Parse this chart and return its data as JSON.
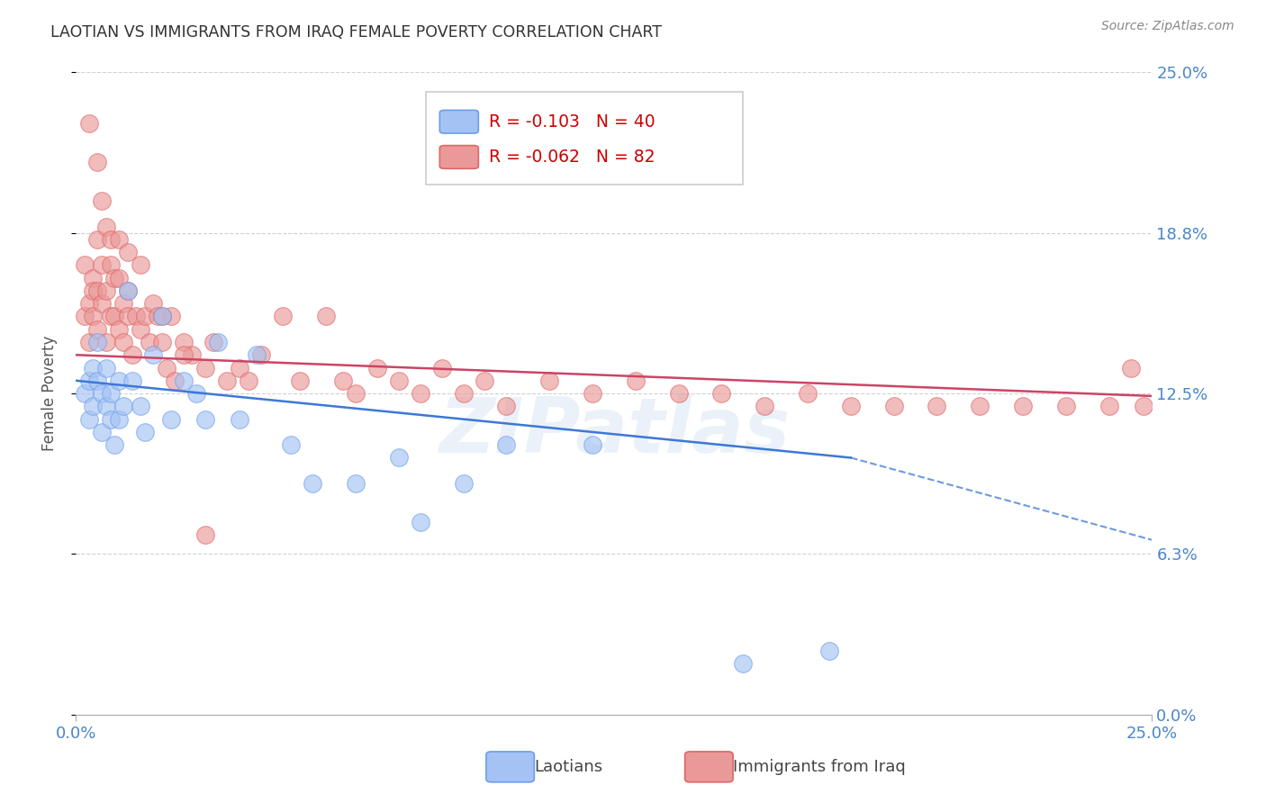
{
  "title": "LAOTIAN VS IMMIGRANTS FROM IRAQ FEMALE POVERTY CORRELATION CHART",
  "source": "Source: ZipAtlas.com",
  "ylabel": "Female Poverty",
  "xmin": 0.0,
  "xmax": 0.25,
  "ymin": 0.0,
  "ymax": 0.25,
  "ytick_values": [
    0.0,
    0.0625,
    0.125,
    0.1875,
    0.25
  ],
  "ytick_labels": [
    "0.0%",
    "6.3%",
    "12.5%",
    "18.8%",
    "25.0%"
  ],
  "xtick_values": [
    0.0,
    0.25
  ],
  "xtick_labels": [
    "0.0%",
    "25.0%"
  ],
  "legend_label_lao": "Laotians",
  "legend_label_iraq": "Immigrants from Iraq",
  "r_laotian": "-0.103",
  "n_laotian": "40",
  "r_iraq": "-0.062",
  "n_iraq": "82",
  "color_laotian_fill": "#a4c2f4",
  "color_laotian_edge": "#6d9eeb",
  "color_iraq_fill": "#ea9999",
  "color_iraq_edge": "#e06666",
  "trendline_laotian_color": "#3c78d8",
  "trendline_iraq_color": "#cc4466",
  "watermark": "ZIPatlas",
  "background_color": "#ffffff",
  "grid_color": "#cccccc",
  "right_axis_color": "#4a86c8",
  "bottom_axis_color": "#4a86c8",
  "title_color": "#333333",
  "source_color": "#888888",
  "ylabel_color": "#555555",
  "legend_text_color": "#cc0000",
  "laotian_x": [
    0.002,
    0.003,
    0.003,
    0.004,
    0.004,
    0.005,
    0.005,
    0.006,
    0.006,
    0.007,
    0.007,
    0.008,
    0.008,
    0.009,
    0.01,
    0.01,
    0.011,
    0.012,
    0.013,
    0.015,
    0.016,
    0.018,
    0.02,
    0.022,
    0.025,
    0.028,
    0.03,
    0.033,
    0.038,
    0.042,
    0.05,
    0.055,
    0.065,
    0.075,
    0.08,
    0.09,
    0.1,
    0.12,
    0.155,
    0.175
  ],
  "laotian_y": [
    0.125,
    0.13,
    0.115,
    0.135,
    0.12,
    0.13,
    0.145,
    0.125,
    0.11,
    0.135,
    0.12,
    0.115,
    0.125,
    0.105,
    0.13,
    0.115,
    0.12,
    0.165,
    0.13,
    0.12,
    0.11,
    0.14,
    0.155,
    0.115,
    0.13,
    0.125,
    0.115,
    0.145,
    0.115,
    0.14,
    0.105,
    0.09,
    0.09,
    0.1,
    0.075,
    0.09,
    0.105,
    0.105,
    0.02,
    0.025
  ],
  "iraq_x": [
    0.002,
    0.002,
    0.003,
    0.003,
    0.004,
    0.004,
    0.004,
    0.005,
    0.005,
    0.005,
    0.006,
    0.006,
    0.007,
    0.007,
    0.008,
    0.008,
    0.009,
    0.009,
    0.01,
    0.01,
    0.011,
    0.011,
    0.012,
    0.012,
    0.013,
    0.014,
    0.015,
    0.016,
    0.017,
    0.018,
    0.019,
    0.02,
    0.021,
    0.022,
    0.023,
    0.025,
    0.027,
    0.03,
    0.032,
    0.035,
    0.038,
    0.04,
    0.043,
    0.048,
    0.052,
    0.058,
    0.062,
    0.065,
    0.07,
    0.075,
    0.08,
    0.085,
    0.09,
    0.095,
    0.1,
    0.11,
    0.12,
    0.13,
    0.14,
    0.15,
    0.16,
    0.17,
    0.18,
    0.19,
    0.2,
    0.21,
    0.22,
    0.23,
    0.24,
    0.248,
    0.003,
    0.005,
    0.006,
    0.007,
    0.008,
    0.01,
    0.012,
    0.015,
    0.02,
    0.025,
    0.03,
    0.245
  ],
  "iraq_y": [
    0.155,
    0.175,
    0.16,
    0.145,
    0.17,
    0.155,
    0.165,
    0.185,
    0.165,
    0.15,
    0.175,
    0.16,
    0.165,
    0.145,
    0.155,
    0.175,
    0.155,
    0.17,
    0.15,
    0.17,
    0.16,
    0.145,
    0.155,
    0.165,
    0.14,
    0.155,
    0.15,
    0.155,
    0.145,
    0.16,
    0.155,
    0.145,
    0.135,
    0.155,
    0.13,
    0.145,
    0.14,
    0.135,
    0.145,
    0.13,
    0.135,
    0.13,
    0.14,
    0.155,
    0.13,
    0.155,
    0.13,
    0.125,
    0.135,
    0.13,
    0.125,
    0.135,
    0.125,
    0.13,
    0.12,
    0.13,
    0.125,
    0.13,
    0.125,
    0.125,
    0.12,
    0.125,
    0.12,
    0.12,
    0.12,
    0.12,
    0.12,
    0.12,
    0.12,
    0.12,
    0.23,
    0.215,
    0.2,
    0.19,
    0.185,
    0.185,
    0.18,
    0.175,
    0.155,
    0.14,
    0.07,
    0.135
  ]
}
